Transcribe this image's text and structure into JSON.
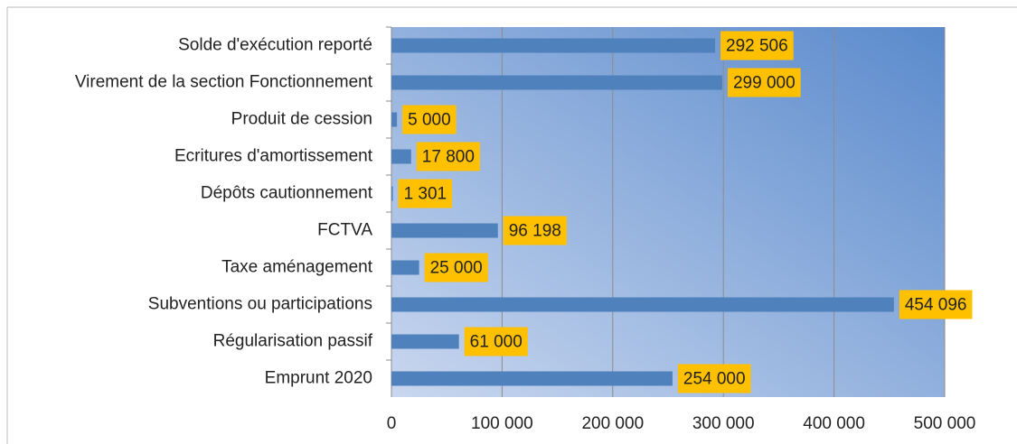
{
  "chart_data": {
    "type": "bar",
    "orientation": "horizontal",
    "categories": [
      "Solde d'exécution reporté",
      "Virement de la section Fonctionnement",
      "Produit de cession",
      "Ecritures d'amortissement",
      "Dépôts cautionnement",
      "FCTVA",
      "Taxe aménagement",
      "Subventions ou participations",
      "Régularisation passif",
      "Emprunt 2020"
    ],
    "values": [
      292506,
      299000,
      5000,
      17800,
      1301,
      96198,
      25000,
      454096,
      61000,
      254000
    ],
    "value_labels": [
      "292 506",
      "299 000",
      "5 000",
      "17 800",
      "1 301",
      "96 198",
      "25 000",
      "454 096",
      "61 000",
      "254 000"
    ],
    "color": "#4f81bd",
    "label_color": "#ffc000",
    "xlim": [
      0,
      500000
    ],
    "xticks": [
      0,
      {
        "value": 100000,
        "label": "100 000"
      },
      {
        "value": 200000,
        "label": "200 000"
      },
      {
        "value": 300000,
        "label": "300 000"
      },
      {
        "value": 400000,
        "label": "400 000"
      },
      {
        "value": 500000,
        "label": "500 000"
      }
    ],
    "grid": true
  }
}
